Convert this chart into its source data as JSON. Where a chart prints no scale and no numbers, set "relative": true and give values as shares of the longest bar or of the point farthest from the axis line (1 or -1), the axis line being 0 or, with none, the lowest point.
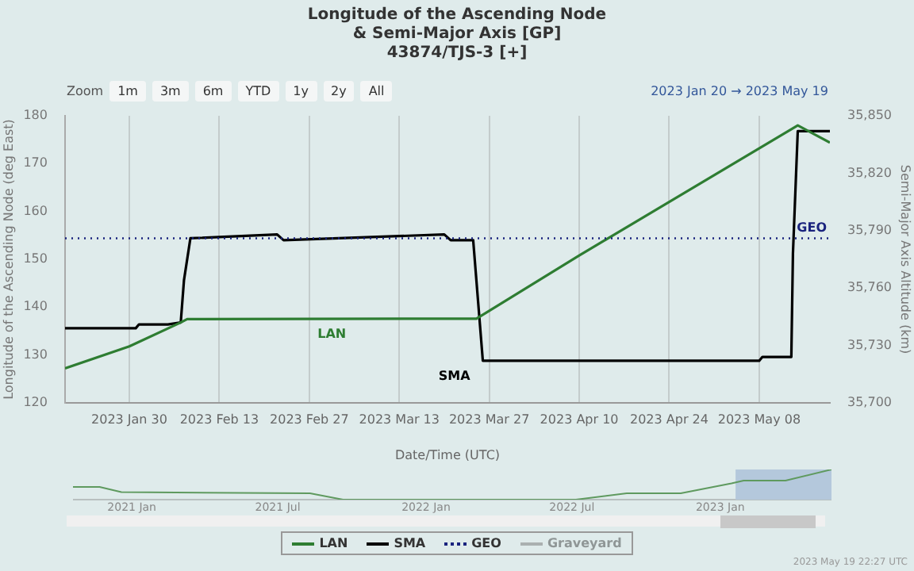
{
  "chart_data": [
    {
      "type": "line",
      "title": "Longitude of the Ascending Node\n& Semi-Major Axis [GP]\n43874/TJS-3 [+]",
      "xlabel": "Date/Time (UTC)",
      "ylabel": "Longitude of the Ascending Node (deg East)",
      "y2label": "Semi-Major Axis Altitude (km)",
      "xlim": [
        "2023-01-20",
        "2023-05-19"
      ],
      "xticks": [
        {
          "value": "2023-01-30",
          "label": "2023 Jan 30"
        },
        {
          "value": "2023-02-13",
          "label": "2023 Feb 13"
        },
        {
          "value": "2023-02-27",
          "label": "2023 Feb 27"
        },
        {
          "value": "2023-03-13",
          "label": "2023 Mar 13"
        },
        {
          "value": "2023-03-27",
          "label": "2023 Mar 27"
        },
        {
          "value": "2023-04-10",
          "label": "2023 Apr 10"
        },
        {
          "value": "2023-04-24",
          "label": "2023 Apr 24"
        },
        {
          "value": "2023-05-08",
          "label": "2023 May 08"
        }
      ],
      "ylim": [
        120,
        180
      ],
      "yticks": [
        120,
        130,
        140,
        150,
        160,
        170,
        180
      ],
      "y2lim": [
        35700,
        35850
      ],
      "y2ticks": [
        {
          "value": 35700,
          "label": "35,700"
        },
        {
          "value": 35730,
          "label": "35,730"
        },
        {
          "value": 35760,
          "label": "35,760"
        },
        {
          "value": 35790,
          "label": "35,790"
        },
        {
          "value": 35820,
          "label": "35,820"
        },
        {
          "value": 35850,
          "label": "35,850"
        }
      ],
      "series": [
        {
          "name": "LAN",
          "color": "#2e7d32",
          "x": [
            "2023-01-20",
            "2023-01-30",
            "2023-02-07",
            "2023-02-08",
            "2023-03-25",
            "2023-04-10",
            "2023-05-14",
            "2023-05-19"
          ],
          "values": [
            127.2,
            131.8,
            136.8,
            137.5,
            137.6,
            150.8,
            178,
            174.4
          ]
        },
        {
          "name": "SMA",
          "color": "#000000",
          "axis": "y2",
          "x": [
            "2023-01-20",
            "2023-01-31",
            "2023-01-31T12:00",
            "2023-02-05",
            "2023-02-07",
            "2023-02-07T12:00",
            "2023-02-08T12:00",
            "2023-02-22",
            "2023-02-23",
            "2023-03-20",
            "2023-03-21",
            "2023-03-24T12:00",
            "2023-03-26",
            "2023-05-08",
            "2023-05-08T12:00",
            "2023-05-13",
            "2023-05-13T06:00",
            "2023-05-14",
            "2023-05-19"
          ],
          "values": [
            35739,
            35739,
            35741,
            35741,
            35742,
            35764,
            35786,
            35788,
            35785,
            35788,
            35785,
            35785,
            35722,
            35722,
            35724,
            35724,
            35778,
            35842,
            35842
          ]
        }
      ],
      "ref_lines": [
        {
          "axis": "y2",
          "value": 35786,
          "label": "GEO",
          "color": "#1a237e",
          "line_style": "dotted"
        }
      ],
      "grid": "x",
      "legend": "bottom",
      "marker": "none",
      "line_style": "solid",
      "annotations": [
        "Zoom",
        "1m",
        "3m",
        "6m",
        "YTD",
        "1y",
        "2y",
        "All",
        "2023 Jan 20 → 2023 May 19",
        "Graveyard",
        "2023 May 19 22:27 UTC"
      ]
    },
    {
      "type": "line",
      "relative": true,
      "xlim": [
        "2020-10-20",
        "2023-05-19"
      ],
      "xticks": [
        {
          "value": "2021-01-01",
          "label": "2021 Jan"
        },
        {
          "value": "2021-07-01",
          "label": "2021 Jul"
        },
        {
          "value": "2022-01-01",
          "label": "2022 Jan"
        },
        {
          "value": "2022-07-01",
          "label": "2022 Jul"
        },
        {
          "value": "2023-01-01",
          "label": "2023 Jan"
        }
      ],
      "series": [
        {
          "color": "#5f9a5f",
          "x": [
            "2020-10-20",
            "2020-11-22",
            "2020-12-19",
            "2021-08-10",
            "2021-09-20",
            "2022-07-06",
            "2022-09-07",
            "2022-11-13",
            "2023-01-15",
            "2023-01-30",
            "2023-03-23",
            "2023-05-19"
          ],
          "values": [
            0.42,
            0.42,
            0.25,
            0.21,
            0,
            0,
            0.21,
            0.21,
            0.54,
            0.63,
            0.63,
            1
          ]
        }
      ],
      "bands": [
        {
          "axis": "x",
          "from": "2023-01-20",
          "to": "2023-05-19",
          "color": "#b4c8dc"
        }
      ],
      "grid": false,
      "marker": "none"
    }
  ]
}
